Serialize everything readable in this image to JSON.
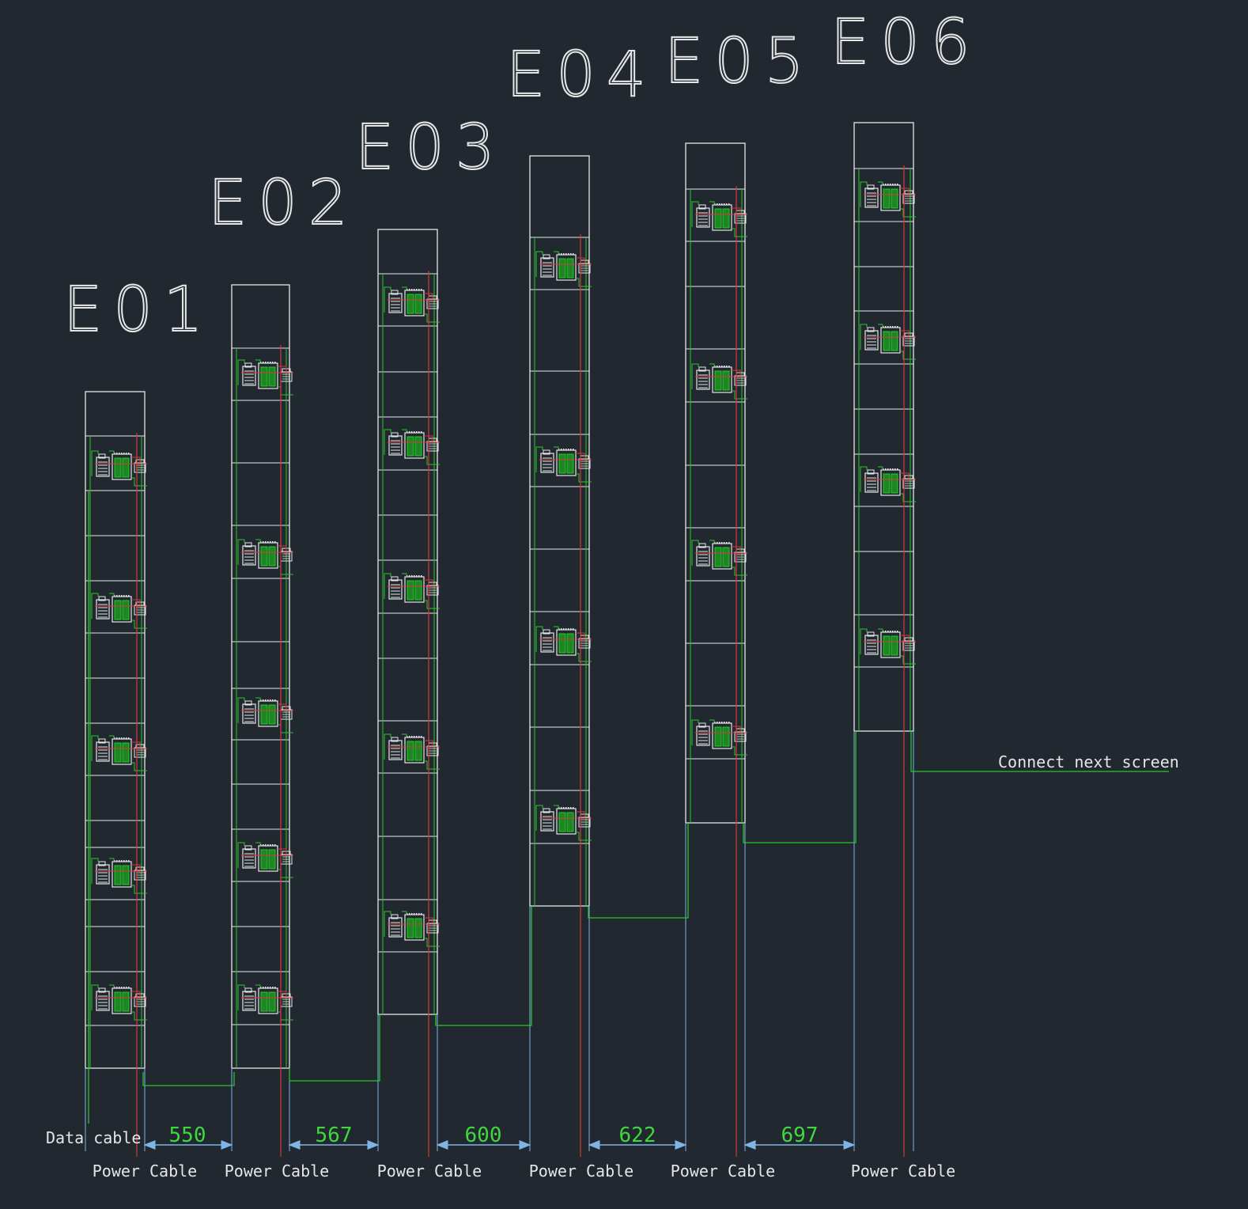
{
  "diagram": {
    "colors": {
      "background": "#212830",
      "outline": "#e6e6e6",
      "data_cable": "#2bc42b",
      "power_cable": "#d43a3a",
      "dimension": "#7fb4e6",
      "dim_text": "#3fd83f",
      "label_text": "#e6e6e6",
      "module_green": "#1fd11f"
    },
    "columns": [
      {
        "id": "E01",
        "label": "E01",
        "power_label": "Power Cable"
      },
      {
        "id": "E02",
        "label": "E02",
        "power_label": "Power Cable"
      },
      {
        "id": "E03",
        "label": "E03",
        "power_label": "Power Cable"
      },
      {
        "id": "E04",
        "label": "E04",
        "power_label": "Power Cable"
      },
      {
        "id": "E05",
        "label": "E05",
        "power_label": "Power Cable"
      },
      {
        "id": "E06",
        "label": "E06",
        "power_label": "Power Cable"
      }
    ],
    "dimensions": [
      "550",
      "567",
      "600",
      "622",
      "697"
    ],
    "data_cable_label": "Data cable",
    "connect_label": "Connect next screen"
  }
}
